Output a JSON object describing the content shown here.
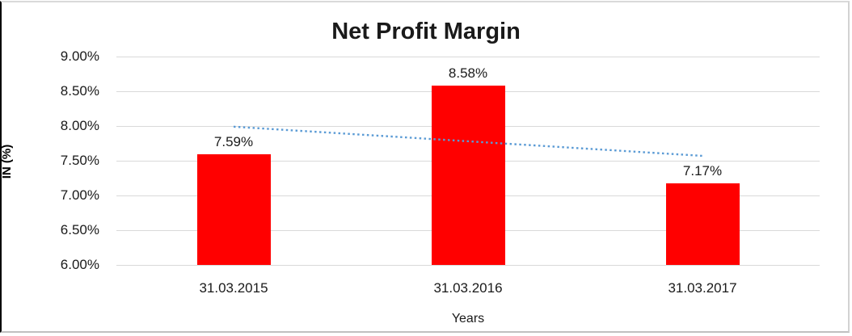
{
  "chart_data": {
    "type": "bar",
    "title": "Net Profit Margin",
    "xlabel": "Years",
    "ylabel": "IN (%)",
    "categories": [
      "31.03.2015",
      "31.03.2016",
      "31.03.2017"
    ],
    "values": [
      7.59,
      8.58,
      7.17
    ],
    "data_labels": [
      "7.59%",
      "8.58%",
      "7.17%"
    ],
    "yticks": [
      {
        "value": 9.0,
        "label": "9.00%"
      },
      {
        "value": 8.5,
        "label": "8.50%"
      },
      {
        "value": 8.0,
        "label": "8.00%"
      },
      {
        "value": 7.5,
        "label": "7.50%"
      },
      {
        "value": 7.0,
        "label": "7.00%"
      },
      {
        "value": 6.5,
        "label": "6.50%"
      },
      {
        "value": 6.0,
        "label": "6.00%"
      }
    ],
    "ylim": [
      6.0,
      9.0
    ],
    "grid": true,
    "legend": "none",
    "bar_color": "#FF0000",
    "gridline_color": "#D9D9D9",
    "trendline": {
      "type": "linear",
      "style": "dotted",
      "color": "#5B9BD5",
      "start_value": 7.99,
      "end_value": 7.57
    }
  }
}
